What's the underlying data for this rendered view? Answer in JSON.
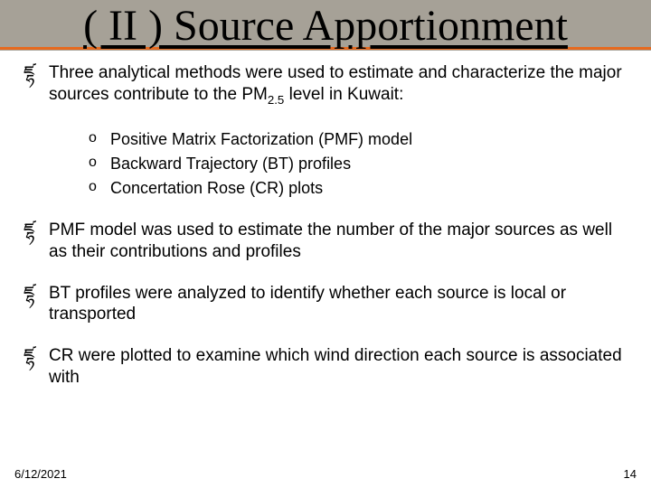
{
  "title": "( II ) Source Apportionment",
  "bullets": [
    {
      "text_html": "Three analytical methods were used to estimate and characterize the major sources contribute to the PM<sub>2.5</sub> level in Kuwait:"
    },
    {
      "text_html": "PMF model was used to estimate the number of the major sources as well as their contributions and profiles"
    },
    {
      "text_html": "BT profiles were analyzed to identify whether each source is local or transported"
    },
    {
      "text_html": "CR were plotted to examine which wind direction each source is associated with"
    }
  ],
  "sublist": [
    "Positive Matrix Factorization (PMF) model",
    "Backward Trajectory (BT) profiles",
    "Concertation Rose (CR) plots"
  ],
  "footer": {
    "date": "6/12/2021",
    "page": "14"
  },
  "colors": {
    "title_band_bg": "#a6a197",
    "accent_line": "#e66a1f",
    "text": "#000000",
    "slide_bg": "#ffffff"
  },
  "fonts": {
    "title_family": "Times New Roman",
    "body_family": "Arial",
    "title_size_pt": 36,
    "body_size_pt": 14,
    "sub_size_pt": 13
  },
  "markers": {
    "bullet": "ཛྷ",
    "sub": "o"
  }
}
